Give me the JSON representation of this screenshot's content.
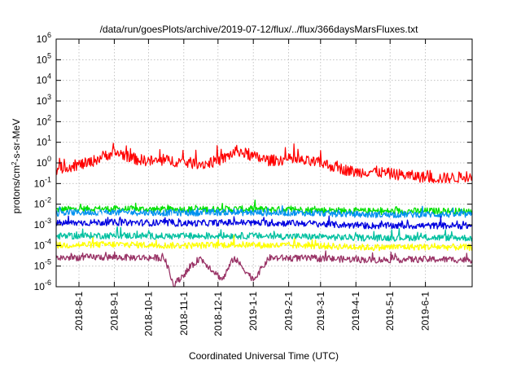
{
  "chart_data": {
    "type": "line",
    "title": "/data/run/goesPlots/archive/2019-07-12/flux/../flux/366daysMarsFluxes.txt",
    "xlabel": "Coordinated Universal Time (UTC)",
    "ylabel": "protons/cm²-s-sr-MeV",
    "ylabel_base": "protons/cm",
    "ylabel_sup": "2",
    "ylabel_rest": "-s-sr-MeV",
    "x_range": [
      "2018-07-12",
      "2019-07-12"
    ],
    "y_scale": "log",
    "y_range": [
      1e-06,
      1000000.0
    ],
    "grid": true,
    "x_ticks": [
      {
        "date": "2018-08-01",
        "label": "2018-8-1"
      },
      {
        "date": "2018-09-01",
        "label": "2018-9-1"
      },
      {
        "date": "2018-10-01",
        "label": "2018-10-1"
      },
      {
        "date": "2018-11-01",
        "label": "2018-11-1"
      },
      {
        "date": "2018-12-01",
        "label": "2018-12-1"
      },
      {
        "date": "2019-01-01",
        "label": "2019-1-1"
      },
      {
        "date": "2019-02-01",
        "label": "2019-2-1"
      },
      {
        "date": "2019-03-01",
        "label": "2019-3-1"
      },
      {
        "date": "2019-04-01",
        "label": "2019-4-1"
      },
      {
        "date": "2019-05-01",
        "label": "2019-5-1"
      },
      {
        "date": "2019-06-01",
        "label": "2019-6-1"
      }
    ],
    "y_ticks": [
      {
        "value": 1e-06,
        "base": "10",
        "exp": "-6"
      },
      {
        "value": 1e-05,
        "base": "10",
        "exp": "-5"
      },
      {
        "value": 0.0001,
        "base": "10",
        "exp": "-4"
      },
      {
        "value": 0.001,
        "base": "10",
        "exp": "-3"
      },
      {
        "value": 0.01,
        "base": "10",
        "exp": "-2"
      },
      {
        "value": 0.1,
        "base": "10",
        "exp": "-1"
      },
      {
        "value": 1.0,
        "base": "10",
        "exp": "0"
      },
      {
        "value": 10.0,
        "base": "10",
        "exp": "1"
      },
      {
        "value": 100.0,
        "base": "10",
        "exp": "2"
      },
      {
        "value": 1000.0,
        "base": "10",
        "exp": "3"
      },
      {
        "value": 10000.0,
        "base": "10",
        "exp": "4"
      },
      {
        "value": 100000.0,
        "base": "10",
        "exp": "5"
      },
      {
        "value": 1000000.0,
        "base": "10",
        "exp": "6"
      }
    ],
    "series": [
      {
        "color": "#00e000",
        "values": [
          [
            "2018-07-12",
            0.0055
          ],
          [
            "2018-08-15",
            0.006
          ],
          [
            "2018-09-15",
            0.0058
          ],
          [
            "2018-10-15",
            0.0056
          ],
          [
            "2018-11-15",
            0.0057
          ],
          [
            "2018-12-15",
            0.0058
          ],
          [
            "2019-01-15",
            0.0056
          ],
          [
            "2019-02-15",
            0.0054
          ],
          [
            "2019-03-15",
            0.005
          ],
          [
            "2019-04-15",
            0.0045
          ],
          [
            "2019-05-15",
            0.0046
          ],
          [
            "2019-06-15",
            0.0047
          ],
          [
            "2019-07-12",
            0.0045
          ]
        ]
      },
      {
        "color": "#0090f0",
        "values": [
          [
            "2018-07-12",
            0.0038
          ],
          [
            "2018-08-15",
            0.004
          ],
          [
            "2018-09-15",
            0.004
          ],
          [
            "2018-10-15",
            0.0038
          ],
          [
            "2018-11-15",
            0.0039
          ],
          [
            "2018-12-15",
            0.004
          ],
          [
            "2019-01-15",
            0.0038
          ],
          [
            "2019-02-15",
            0.0037
          ],
          [
            "2019-03-15",
            0.0034
          ],
          [
            "2019-04-15",
            0.0031
          ],
          [
            "2019-05-15",
            0.0032
          ],
          [
            "2019-06-15",
            0.0032
          ],
          [
            "2019-07-12",
            0.0031
          ]
        ]
      },
      {
        "color": "#ffffff",
        "values": [
          [
            "2018-07-12",
            0.002
          ],
          [
            "2018-08-15",
            0.0021
          ],
          [
            "2018-09-15",
            0.002
          ],
          [
            "2018-10-15",
            0.0019
          ],
          [
            "2018-11-15",
            0.002
          ],
          [
            "2018-12-15",
            0.0021
          ],
          [
            "2019-01-15",
            0.002
          ],
          [
            "2019-02-15",
            0.0019
          ],
          [
            "2019-03-15",
            0.0017
          ],
          [
            "2019-04-15",
            0.0015
          ],
          [
            "2019-05-15",
            0.0016
          ],
          [
            "2019-06-15",
            0.0016
          ],
          [
            "2019-07-12",
            0.0015
          ]
        ]
      },
      {
        "color": "#0000e0",
        "values": [
          [
            "2018-07-12",
            0.0012
          ],
          [
            "2018-08-15",
            0.0013
          ],
          [
            "2018-09-15",
            0.0013
          ],
          [
            "2018-10-15",
            0.0012
          ],
          [
            "2018-11-15",
            0.0012
          ],
          [
            "2018-12-15",
            0.0013
          ],
          [
            "2019-01-15",
            0.0012
          ],
          [
            "2019-02-15",
            0.0012
          ],
          [
            "2019-03-15",
            0.001
          ],
          [
            "2019-04-15",
            0.0009
          ],
          [
            "2019-05-15",
            0.0009
          ],
          [
            "2019-06-15",
            0.0009
          ],
          [
            "2019-07-12",
            0.0009
          ]
        ]
      },
      {
        "color": "#00c0a0",
        "values": [
          [
            "2018-07-12",
            0.00028
          ],
          [
            "2018-08-15",
            0.0003
          ],
          [
            "2018-09-15",
            0.0003
          ],
          [
            "2018-10-15",
            0.00028
          ],
          [
            "2018-11-15",
            0.00028
          ],
          [
            "2018-12-15",
            0.0003
          ],
          [
            "2019-01-15",
            0.00028
          ],
          [
            "2019-02-15",
            0.00027
          ],
          [
            "2019-03-15",
            0.00025
          ],
          [
            "2019-04-15",
            0.00023
          ],
          [
            "2019-05-15",
            0.00024
          ],
          [
            "2019-06-15",
            0.00024
          ],
          [
            "2019-07-12",
            0.00023
          ]
        ]
      },
      {
        "color": "#ffff00",
        "values": [
          [
            "2018-07-12",
            0.0001
          ],
          [
            "2018-08-15",
            0.00011
          ],
          [
            "2018-09-15",
            0.00011
          ],
          [
            "2018-10-15",
            0.0001
          ],
          [
            "2018-11-15",
            0.0001
          ],
          [
            "2018-12-15",
            0.00011
          ],
          [
            "2019-01-15",
            0.0001
          ],
          [
            "2019-02-15",
            0.0001
          ],
          [
            "2019-03-15",
            9e-05
          ],
          [
            "2019-04-15",
            8e-05
          ],
          [
            "2019-05-15",
            8.5e-05
          ],
          [
            "2019-06-15",
            8.5e-05
          ],
          [
            "2019-07-12",
            8e-05
          ]
        ]
      },
      {
        "color": "#993366",
        "values": [
          [
            "2018-07-12",
            2.5e-05
          ],
          [
            "2018-08-15",
            2.7e-05
          ],
          [
            "2018-09-15",
            2.6e-05
          ],
          [
            "2018-10-15",
            2.5e-05
          ],
          [
            "2018-10-23",
            1.2e-06
          ],
          [
            "2018-11-15",
            2.5e-05
          ],
          [
            "2018-12-05",
            2.2e-06
          ],
          [
            "2018-12-15",
            2.6e-05
          ],
          [
            "2019-01-01",
            2.2e-06
          ],
          [
            "2019-01-15",
            2.5e-05
          ],
          [
            "2019-02-15",
            2.4e-05
          ],
          [
            "2019-03-15",
            2.2e-05
          ],
          [
            "2019-04-15",
            2e-05
          ],
          [
            "2019-05-15",
            2.1e-05
          ],
          [
            "2019-06-15",
            2.1e-05
          ],
          [
            "2019-07-12",
            2e-05
          ]
        ]
      },
      {
        "color": "#ff0000",
        "values": [
          [
            "2018-07-12",
            0.5
          ],
          [
            "2018-07-25",
            0.7
          ],
          [
            "2018-08-10",
            1.0
          ],
          [
            "2018-08-25",
            2.5
          ],
          [
            "2018-09-05",
            3.0
          ],
          [
            "2018-09-20",
            1.5
          ],
          [
            "2018-10-05",
            1.2
          ],
          [
            "2018-10-20",
            1.3
          ],
          [
            "2018-11-05",
            1.0
          ],
          [
            "2018-11-20",
            0.9
          ],
          [
            "2018-12-05",
            1.5
          ],
          [
            "2018-12-18",
            4.0
          ],
          [
            "2019-01-01",
            2.0
          ],
          [
            "2019-01-15",
            1.3
          ],
          [
            "2019-02-01",
            1.5
          ],
          [
            "2019-02-15",
            1.2
          ],
          [
            "2019-03-01",
            1.0
          ],
          [
            "2019-03-15",
            0.6
          ],
          [
            "2019-04-01",
            0.35
          ],
          [
            "2019-04-15",
            0.4
          ],
          [
            "2019-05-01",
            0.3
          ],
          [
            "2019-05-15",
            0.25
          ],
          [
            "2019-06-01",
            0.2
          ],
          [
            "2019-06-15",
            0.18
          ],
          [
            "2019-07-01",
            0.2
          ],
          [
            "2019-07-12",
            0.25
          ]
        ]
      }
    ]
  }
}
